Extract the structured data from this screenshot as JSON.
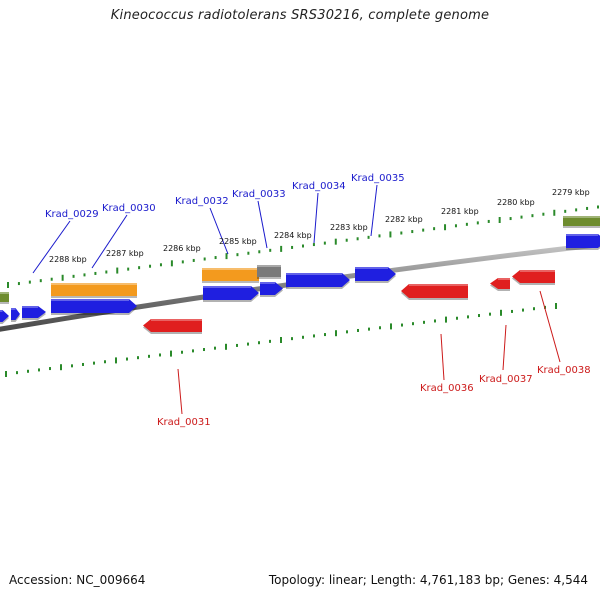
{
  "title": "Kineococcus radiotolerans SRS30216, complete genome",
  "accession": "Accession: NC_009664",
  "summary": "Topology: linear; Length: 4,761,183 bp; Genes: 4,544",
  "colors": {
    "cds_forward": "#1f1fe0",
    "cds_reverse": "#e01f1f",
    "feature_orange": "#f39a1e",
    "feature_gray": "#7a7a7a",
    "feature_olive": "#6e8c2e",
    "tick": "#2a8a2a",
    "label_forward": "#1a1acc",
    "label_reverse": "#cc1a1a",
    "backbone": "#8a8a8a"
  },
  "kbp_labels": [
    "2288 kbp",
    "2287 kbp",
    "2286 kbp",
    "2285 kbp",
    "2284 kbp",
    "2283 kbp",
    "2282 kbp",
    "2281 kbp",
    "2280 kbp",
    "2279 kbp"
  ],
  "top_gene_labels": [
    "Krad_0029",
    "Krad_0030",
    "Krad_0032",
    "Krad_0033",
    "Krad_0034",
    "Krad_0035"
  ],
  "bottom_gene_labels": [
    "Krad_0031",
    "Krad_0036",
    "Krad_0037",
    "Krad_0038"
  ]
}
